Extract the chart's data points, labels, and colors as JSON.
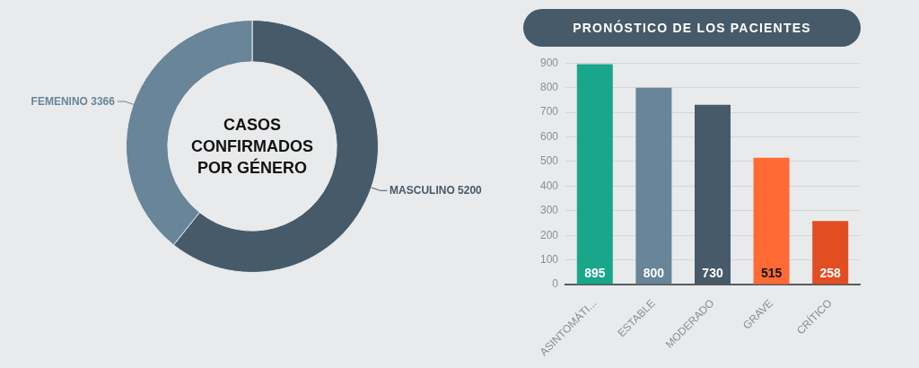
{
  "chart_data": [
    {
      "type": "donut",
      "title": "CASOS CONFIRMADOS POR GÉNERO",
      "categories": [
        "MASCULINO",
        "FEMENINO"
      ],
      "values": [
        5200,
        3366
      ],
      "colors": [
        "#465a69",
        "#688599"
      ],
      "data_labels": true
    },
    {
      "type": "bar",
      "title": "PRONÓSTICO DE LOS PACIENTES",
      "categories": [
        "ASINTOMÁTI...",
        "ESTABLE",
        "MODERADO",
        "GRAVE",
        "CRÍTICO"
      ],
      "values": [
        895,
        800,
        730,
        515,
        258
      ],
      "colors": [
        "#1aa68a",
        "#688599",
        "#465a69",
        "#ff6a35",
        "#e34d22"
      ],
      "ylim": [
        0,
        900
      ],
      "yticks": [
        0,
        100,
        200,
        300,
        400,
        500,
        600,
        700,
        800,
        900
      ],
      "grid": "y",
      "data_labels": true
    }
  ]
}
